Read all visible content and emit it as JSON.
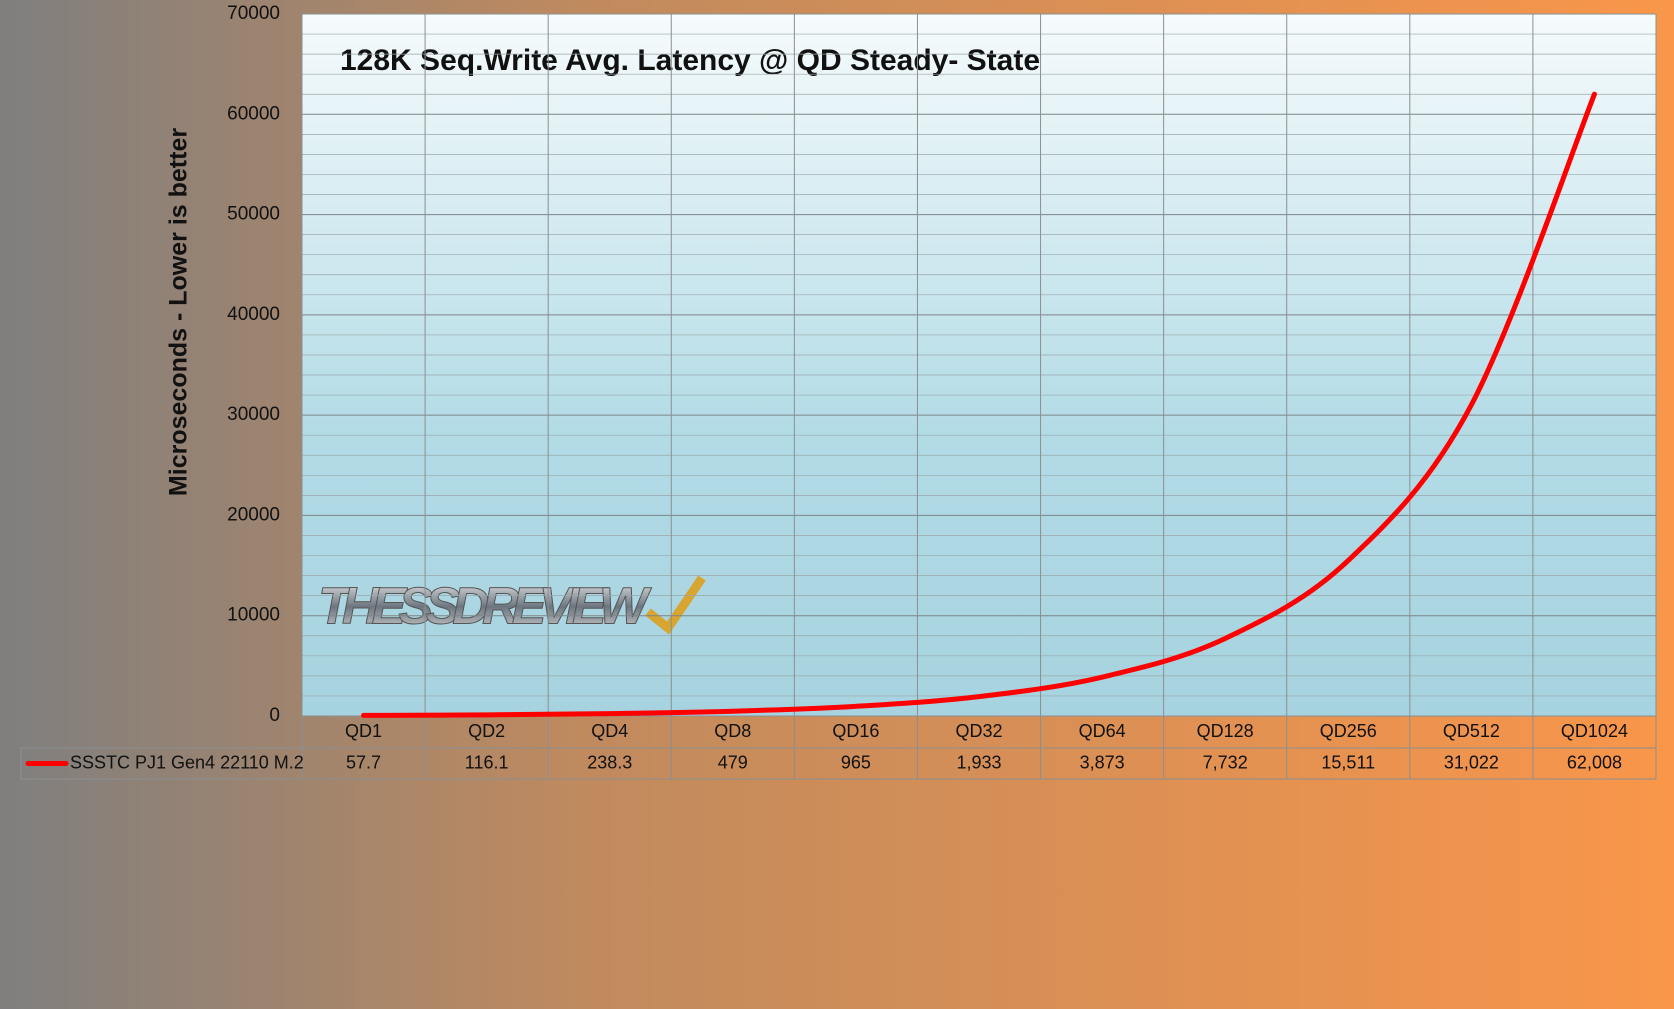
{
  "chart_data": {
    "type": "line",
    "title": "128K Seq.Write Avg. Latency @ QD Steady- State",
    "y_label": "Microseconds - Lower is better",
    "logo": "THESSDREVIEW",
    "categories": [
      "QD1",
      "QD2",
      "QD4",
      "QD8",
      "QD16",
      "QD32",
      "QD64",
      "QD128",
      "QD256",
      "QD512",
      "QD1024"
    ],
    "series": [
      {
        "name": "SSSTC PJ1  Gen4 22110 M.2",
        "color": "#ff0000",
        "values": [
          57.7,
          116.1,
          238.3,
          479,
          965,
          1933,
          3873,
          7732,
          15511,
          31022,
          62008
        ],
        "value_labels": [
          "57.7",
          "116.1",
          "238.3",
          "479",
          "965",
          "1,933",
          "3,873",
          "7,732",
          "15,511",
          "31,022",
          "62,008"
        ]
      }
    ],
    "ylim": [
      0,
      70000
    ],
    "yticks": [
      0,
      10000,
      20000,
      30000,
      40000,
      50000,
      60000,
      70000
    ],
    "grid": true
  }
}
